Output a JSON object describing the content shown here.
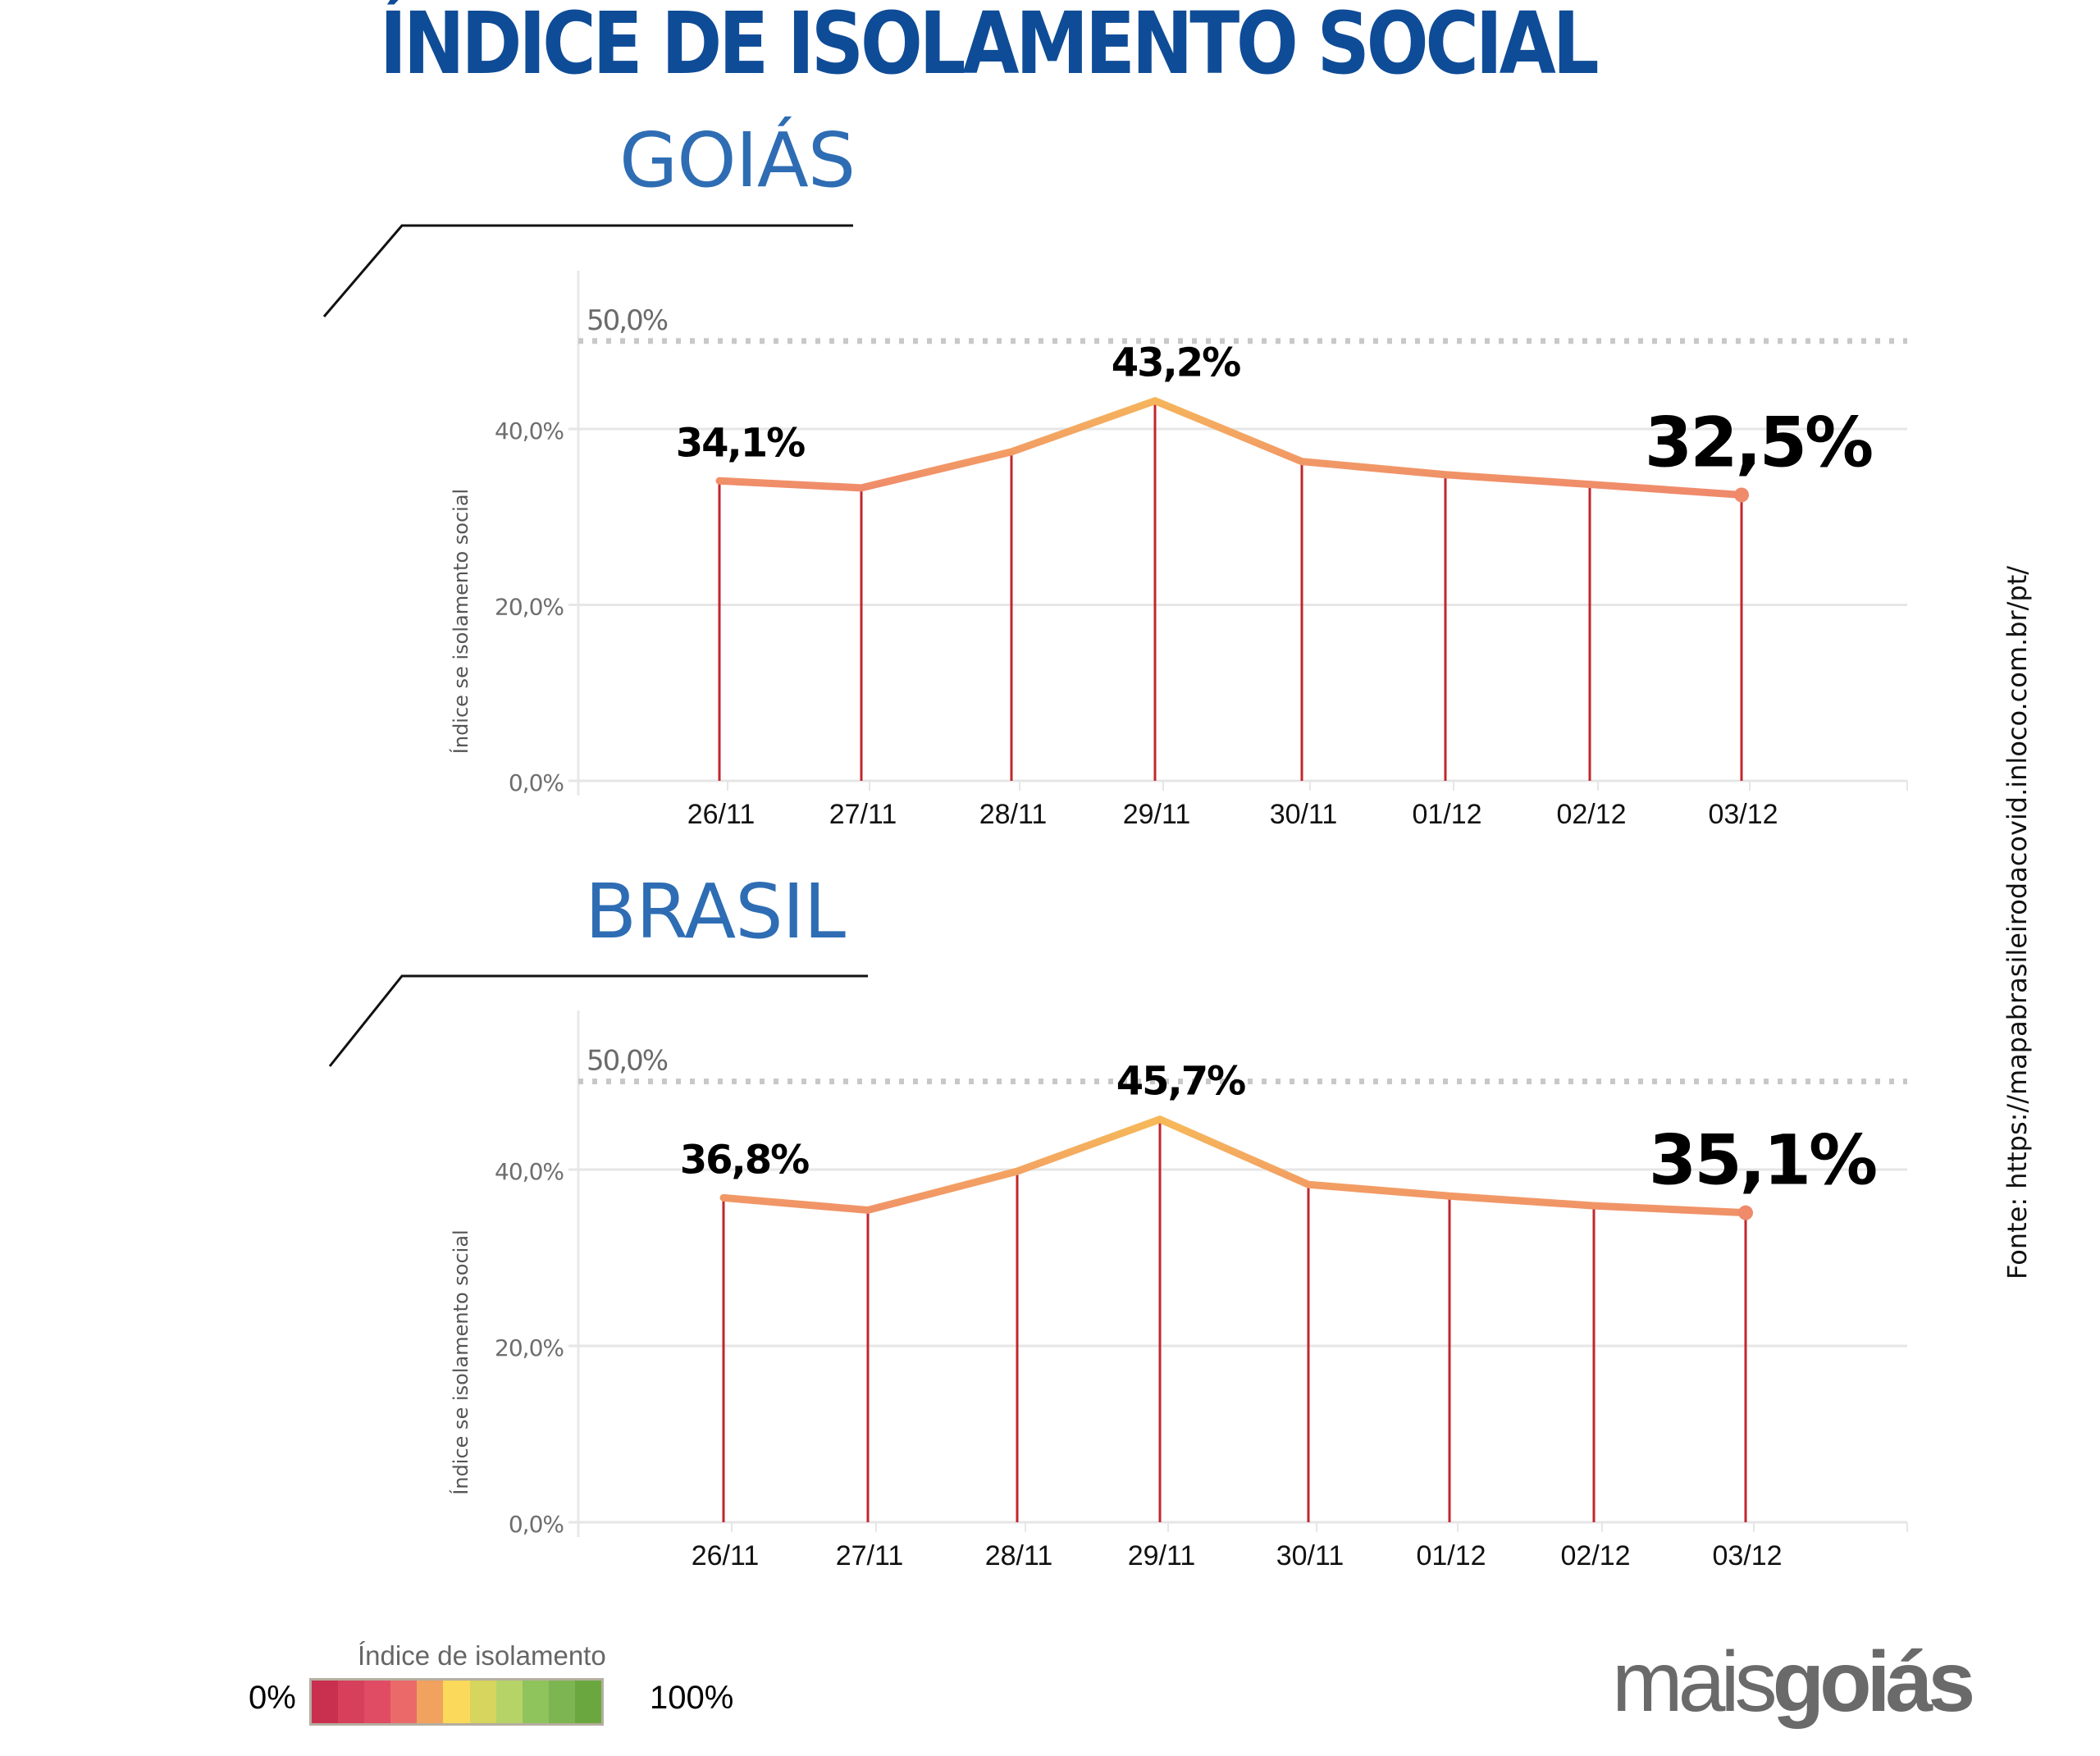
{
  "header": {
    "title": "ÍNDICE DE ISOLAMENTO SOCIAL"
  },
  "source_note": "Fonte: https://mapabrasileirodacovid.inloco.com.br/pt/",
  "legend": {
    "title": "Índice de isolamento",
    "min_label": "0%",
    "max_label": "100%",
    "colors": [
      "#c9304f",
      "#d6405a",
      "#df4c64",
      "#ea6a6a",
      "#f2a25f",
      "#fbd95a",
      "#d6d55e",
      "#b5d367",
      "#8fc35c",
      "#7db552",
      "#6aa83f"
    ]
  },
  "logo": {
    "part1": "mais",
    "part2": "goiás",
    "color": "#6a6a6a"
  },
  "colors": {
    "title": "#0f4c97",
    "section_title": "#2e6db4",
    "stem": "#c0272d",
    "line_low": "#ef8a6b",
    "line_high": "#f6b85a",
    "grid": "#e6e6e6",
    "reference": "#c8c8c8"
  },
  "chart_data": [
    {
      "type": "line",
      "title": "GOIÁS",
      "xlabel": "",
      "ylabel": "Índice se isolamento social",
      "ylim": [
        0,
        55
      ],
      "yticks": [
        0,
        20,
        40
      ],
      "ytick_labels": [
        "0,0%",
        "20,0%",
        "40,0%"
      ],
      "reference_line": {
        "value": 50,
        "label": "50,0%",
        "style": "dotted"
      },
      "grid": true,
      "categories": [
        "26/11",
        "27/11",
        "28/11",
        "29/11",
        "30/11",
        "01/12",
        "02/12",
        "03/12"
      ],
      "series": [
        {
          "name": "Goiás",
          "values": [
            34.1,
            33.3,
            37.4,
            43.2,
            36.3,
            34.8,
            33.7,
            32.5
          ]
        }
      ],
      "annotations": [
        {
          "index": 0,
          "label": "34,1%",
          "size": "medium"
        },
        {
          "index": 3,
          "label": "43,2%",
          "size": "medium"
        },
        {
          "index": 7,
          "label": "32,5%",
          "size": "large"
        }
      ]
    },
    {
      "type": "line",
      "title": "BRASIL",
      "xlabel": "",
      "ylabel": "Índice se isolamento social",
      "ylim": [
        0,
        55
      ],
      "yticks": [
        0,
        20,
        40
      ],
      "ytick_labels": [
        "0,0%",
        "20,0%",
        "40,0%"
      ],
      "reference_line": {
        "value": 50,
        "label": "50,0%",
        "style": "dotted"
      },
      "grid": true,
      "categories": [
        "26/11",
        "27/11",
        "28/11",
        "29/11",
        "30/11",
        "01/12",
        "02/12",
        "03/12"
      ],
      "series": [
        {
          "name": "Brasil",
          "values": [
            36.8,
            35.4,
            39.8,
            45.7,
            38.3,
            37.0,
            35.9,
            35.1
          ]
        }
      ],
      "annotations": [
        {
          "index": 0,
          "label": "36,8%",
          "size": "medium"
        },
        {
          "index": 3,
          "label": "45,7%",
          "size": "medium"
        },
        {
          "index": 7,
          "label": "35,1%",
          "size": "large"
        }
      ]
    }
  ]
}
